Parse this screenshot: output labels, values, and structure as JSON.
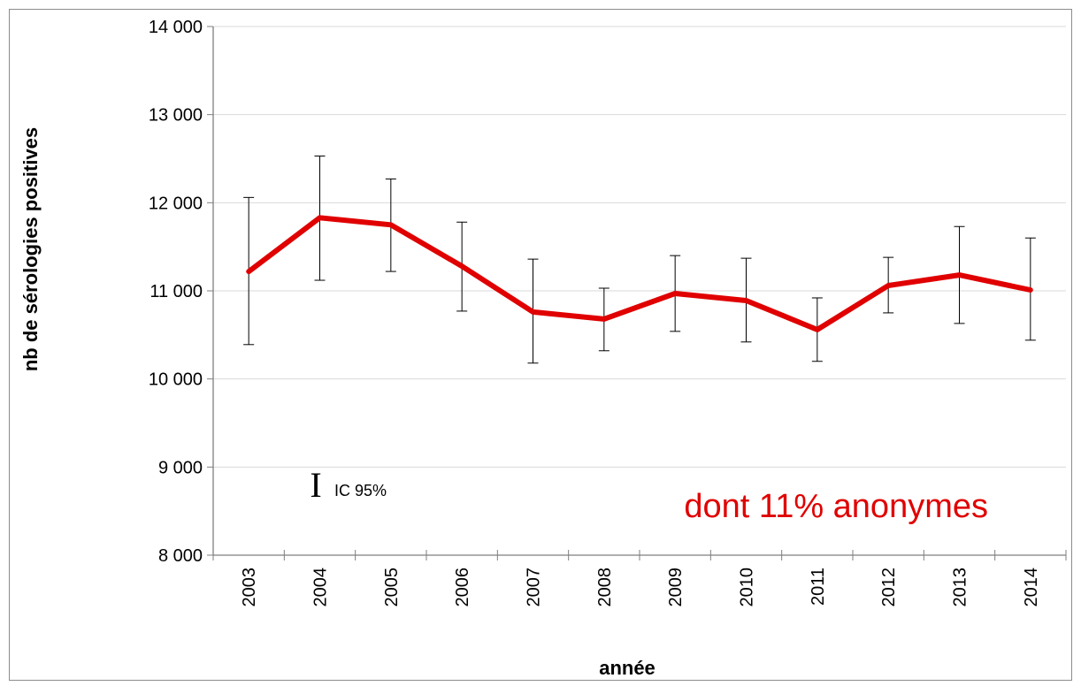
{
  "chart_data": {
    "type": "line",
    "title": "",
    "xlabel": "année",
    "ylabel": "nb de sérologies positives",
    "ylim": [
      8000,
      14000
    ],
    "yticks": [
      8000,
      9000,
      10000,
      11000,
      12000,
      13000,
      14000
    ],
    "ytick_labels": [
      "8 000",
      "9 000",
      "10 000",
      "11 000",
      "12 000",
      "13 000",
      "14 000"
    ],
    "categories": [
      "2003",
      "2004",
      "2005",
      "2006",
      "2007",
      "2008",
      "2009",
      "2010",
      "2011",
      "2012",
      "2013",
      "2014"
    ],
    "series": [
      {
        "values": [
          11220,
          11830,
          11750,
          11280,
          10760,
          10680,
          10970,
          10890,
          10560,
          11060,
          11180,
          11010
        ],
        "ci_low": [
          10390,
          11120,
          11220,
          10770,
          10180,
          10320,
          10540,
          10420,
          10200,
          10750,
          10630,
          10440
        ],
        "ci_high": [
          12060,
          12530,
          12270,
          11780,
          11360,
          11030,
          11400,
          11370,
          10920,
          11380,
          11730,
          11600
        ],
        "color": "#e00000"
      }
    ],
    "grid": "horizontal",
    "legend": {
      "symbol": "I",
      "label": "IC 95%"
    },
    "annotation": "dont 11% anonymes",
    "annotation_color": "#e00000"
  }
}
